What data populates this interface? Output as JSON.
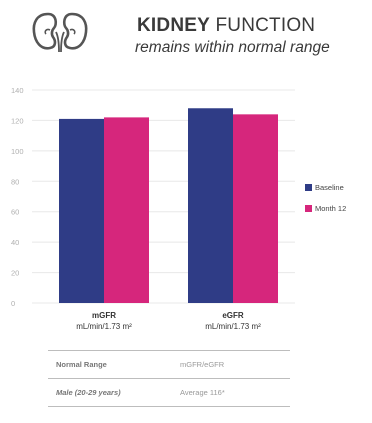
{
  "header": {
    "icon": "kidneys-icon",
    "title_bold": "KIDNEY",
    "title_rest": " FUNCTION",
    "subtitle": "remains within normal range"
  },
  "colors": {
    "baseline": "#2f3c86",
    "month12": "#d6267c",
    "grid": "#e8e8e8"
  },
  "chart_data": {
    "type": "bar",
    "categories": [
      "mGFR",
      "eGFR"
    ],
    "category_units": [
      "mL/min/1.73 m²",
      "mL/min/1.73 m²"
    ],
    "series": [
      {
        "name": "Baseline",
        "values": [
          121,
          128
        ]
      },
      {
        "name": "Month 12",
        "values": [
          122,
          124
        ]
      }
    ],
    "ylim": [
      0,
      140
    ],
    "yticks": [
      0,
      20,
      40,
      60,
      80,
      100,
      120,
      140
    ],
    "grid": true,
    "legend_position": "right"
  },
  "table": {
    "rows": [
      {
        "label": "Normal Range",
        "value": "mGFR/eGFR",
        "italic": false
      },
      {
        "label": "Male (20-29 years)",
        "value": "Average 116*",
        "italic": true
      }
    ]
  }
}
